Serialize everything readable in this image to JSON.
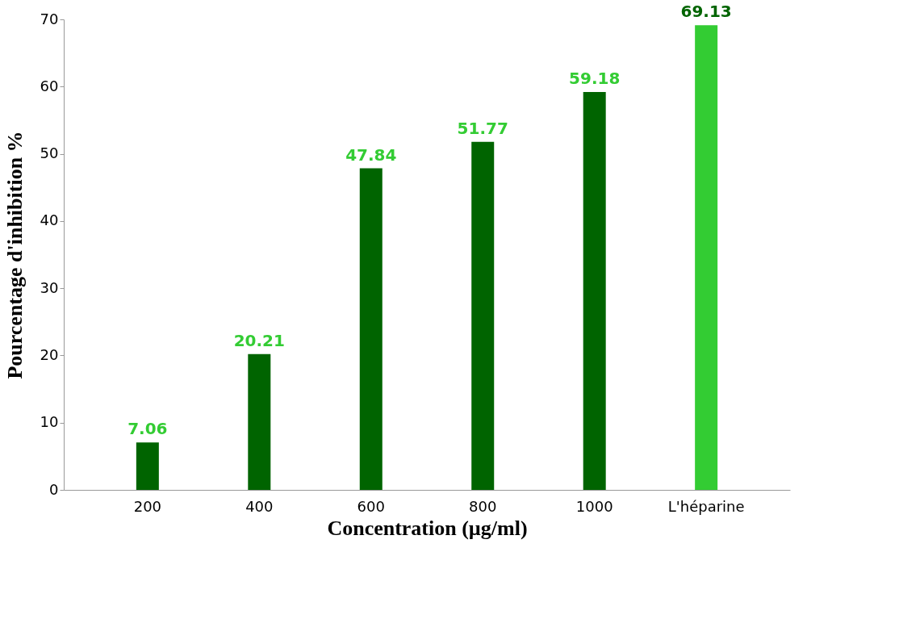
{
  "chart_data": {
    "type": "bar",
    "xlabel": "Concentration (µg/ml)",
    "ylabel": "Pourcentage d'inhibition %",
    "categories": [
      "200",
      "400",
      "600",
      "800",
      "1000",
      "L'héparine"
    ],
    "values": [
      7.06,
      20.21,
      47.84,
      51.77,
      59.18,
      69.13
    ],
    "colors": [
      "#006400",
      "#006400",
      "#006400",
      "#006400",
      "#006400",
      "#33cc33"
    ],
    "ylim": [
      0,
      70
    ],
    "yticks": [
      0,
      10,
      20,
      30,
      40,
      50,
      60,
      70
    ],
    "data_labels": true,
    "grid": false
  }
}
